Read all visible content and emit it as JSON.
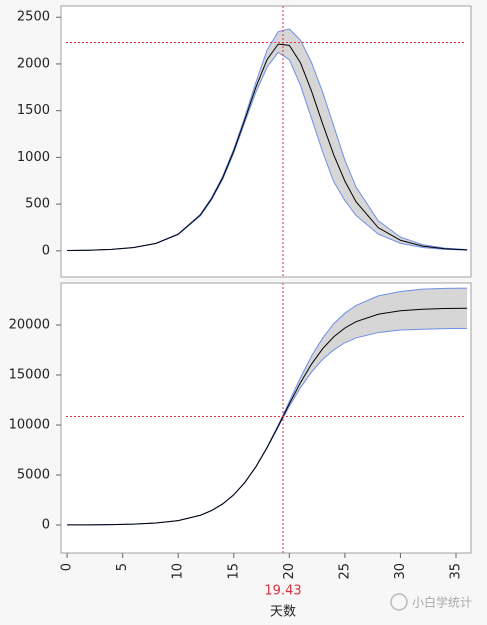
{
  "chart_data": [
    {
      "type": "line",
      "x": [
        0,
        2,
        4,
        6,
        8,
        10,
        12,
        13,
        14,
        15,
        16,
        17,
        18,
        19,
        20,
        21,
        22,
        23,
        24,
        25,
        26,
        28,
        30,
        32,
        34,
        36
      ],
      "values": [
        3.0,
        6.9,
        15.6,
        35.4,
        79.8,
        177.6,
        384,
        557,
        781,
        1069,
        1406,
        1754,
        2048,
        2212,
        2199,
        2013,
        1708,
        1358,
        1026,
        746,
        526,
        248,
        113,
        50,
        22,
        10
      ],
      "upper": [
        3.1,
        7.0,
        15.9,
        36.1,
        81.4,
        181,
        392,
        568,
        797,
        1090,
        1434,
        1807,
        2150,
        2345,
        2375,
        2255,
        2015,
        1698,
        1334,
        970,
        684,
        322,
        147,
        65,
        29,
        13
      ],
      "lower": [
        2.9,
        6.8,
        15.3,
        34.7,
        78.2,
        174,
        376,
        546,
        765,
        1048,
        1378,
        1701,
        1966,
        2124,
        2045,
        1771,
        1418,
        1059,
        739,
        537,
        379,
        179,
        81,
        36,
        16,
        7
      ],
      "color": "#000000",
      "band_color": "#d6d6d6",
      "band_edge": "#6f8fe8",
      "ref_color": "#d9303f",
      "xlim": [
        -0.55,
        36.35
      ],
      "ylim": [
        -280,
        2620
      ],
      "yticks": [
        0,
        500,
        1000,
        1500,
        2000,
        2500
      ],
      "vline": 19.43,
      "hline": 2230
    },
    {
      "type": "line",
      "x": [
        0,
        2,
        4,
        6,
        8,
        10,
        12,
        13,
        14,
        15,
        16,
        17,
        18,
        19,
        20,
        21,
        22,
        23,
        24,
        25,
        26,
        28,
        30,
        32,
        34,
        36
      ],
      "values": [
        7,
        17,
        38,
        87,
        196,
        441,
        977,
        1441,
        2103,
        3022,
        4255,
        5840,
        7750,
        9891,
        12116,
        14230,
        16098,
        17634,
        18822,
        19702,
        20334,
        21078,
        21422,
        21577,
        21646,
        21676
      ],
      "upper": [
        7,
        17,
        38,
        87,
        197,
        443,
        982,
        1448,
        2114,
        3037,
        4276,
        5869,
        7789,
        9990,
        12358,
        14728,
        16903,
        18692,
        20140,
        21180,
        21961,
        22912,
        23350,
        23584,
        23659,
        23692
      ],
      "lower": [
        7,
        17,
        38,
        86,
        195,
        439,
        972,
        1434,
        2092,
        3007,
        4234,
        5811,
        7711,
        9792,
        11874,
        13732,
        15293,
        16576,
        17504,
        18224,
        18707,
        19244,
        19494,
        19570,
        19633,
        19660
      ],
      "color": "#000000",
      "band_color": "#d6d6d6",
      "band_edge": "#6f8fe8",
      "ref_color": "#d9303f",
      "xlim": [
        -0.55,
        36.35
      ],
      "ylim": [
        -2800,
        24200
      ],
      "yticks": [
        0,
        5000,
        10000,
        15000,
        20000
      ],
      "xticks": [
        0,
        5,
        10,
        15,
        20,
        25,
        30,
        35
      ],
      "xlabel": "天数",
      "vline": 19.43,
      "hline": 10850,
      "watermark": "小白学统计"
    }
  ]
}
